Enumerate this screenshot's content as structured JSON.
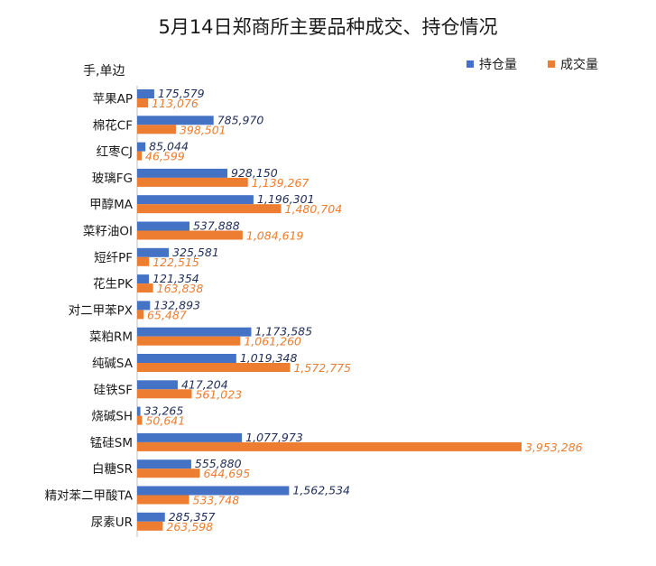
{
  "chart_data": {
    "type": "bar",
    "orientation": "horizontal",
    "title": "5月14日郑商所主要品种成交、持仓情况",
    "unit_label": "手,单边",
    "legend_position": "top-right",
    "grid": false,
    "colors": {
      "position": "#4472c4",
      "volume": "#ed7d31"
    },
    "categories": [
      "苹果AP",
      "棉花CF",
      "红枣CJ",
      "玻璃FG",
      "甲醇MA",
      "菜籽油OI",
      "短纤PF",
      "花生PK",
      "对二甲苯PX",
      "菜粕RM",
      "纯碱SA",
      "硅铁SF",
      "烧碱SH",
      "锰硅SM",
      "白糖SR",
      "精对苯二甲酸TA",
      "尿素UR"
    ],
    "series": [
      {
        "name": "持仓量",
        "values": [
          175579,
          785970,
          85044,
          928150,
          1196301,
          537888,
          325581,
          121354,
          132893,
          1173585,
          1019348,
          417204,
          33265,
          1077973,
          555880,
          1562534,
          285357
        ],
        "labels": [
          "175,579",
          "785,970",
          "85,044",
          "928,150",
          "1,196,301",
          "537,888",
          "325,581",
          "121,354",
          "132,893",
          "1,173,585",
          "1,019,348",
          "417,204",
          "33,265",
          "1,077,973",
          "555,880",
          "1,562,534",
          "285,357"
        ]
      },
      {
        "name": "成交量",
        "values": [
          113076,
          398501,
          46599,
          1139267,
          1480704,
          1084619,
          122515,
          163838,
          65487,
          1061260,
          1572775,
          561023,
          50641,
          3953286,
          644695,
          533748,
          263598
        ],
        "labels": [
          "113,076",
          "398,501",
          "46,599",
          "1,139,267",
          "1,480,704",
          "1,084,619",
          "122,515",
          "163,838",
          "65,487",
          "1,061,260",
          "1,572,775",
          "561,023",
          "50,641",
          "3,953,286",
          "644,695",
          "533,748",
          "263,598"
        ]
      }
    ]
  }
}
